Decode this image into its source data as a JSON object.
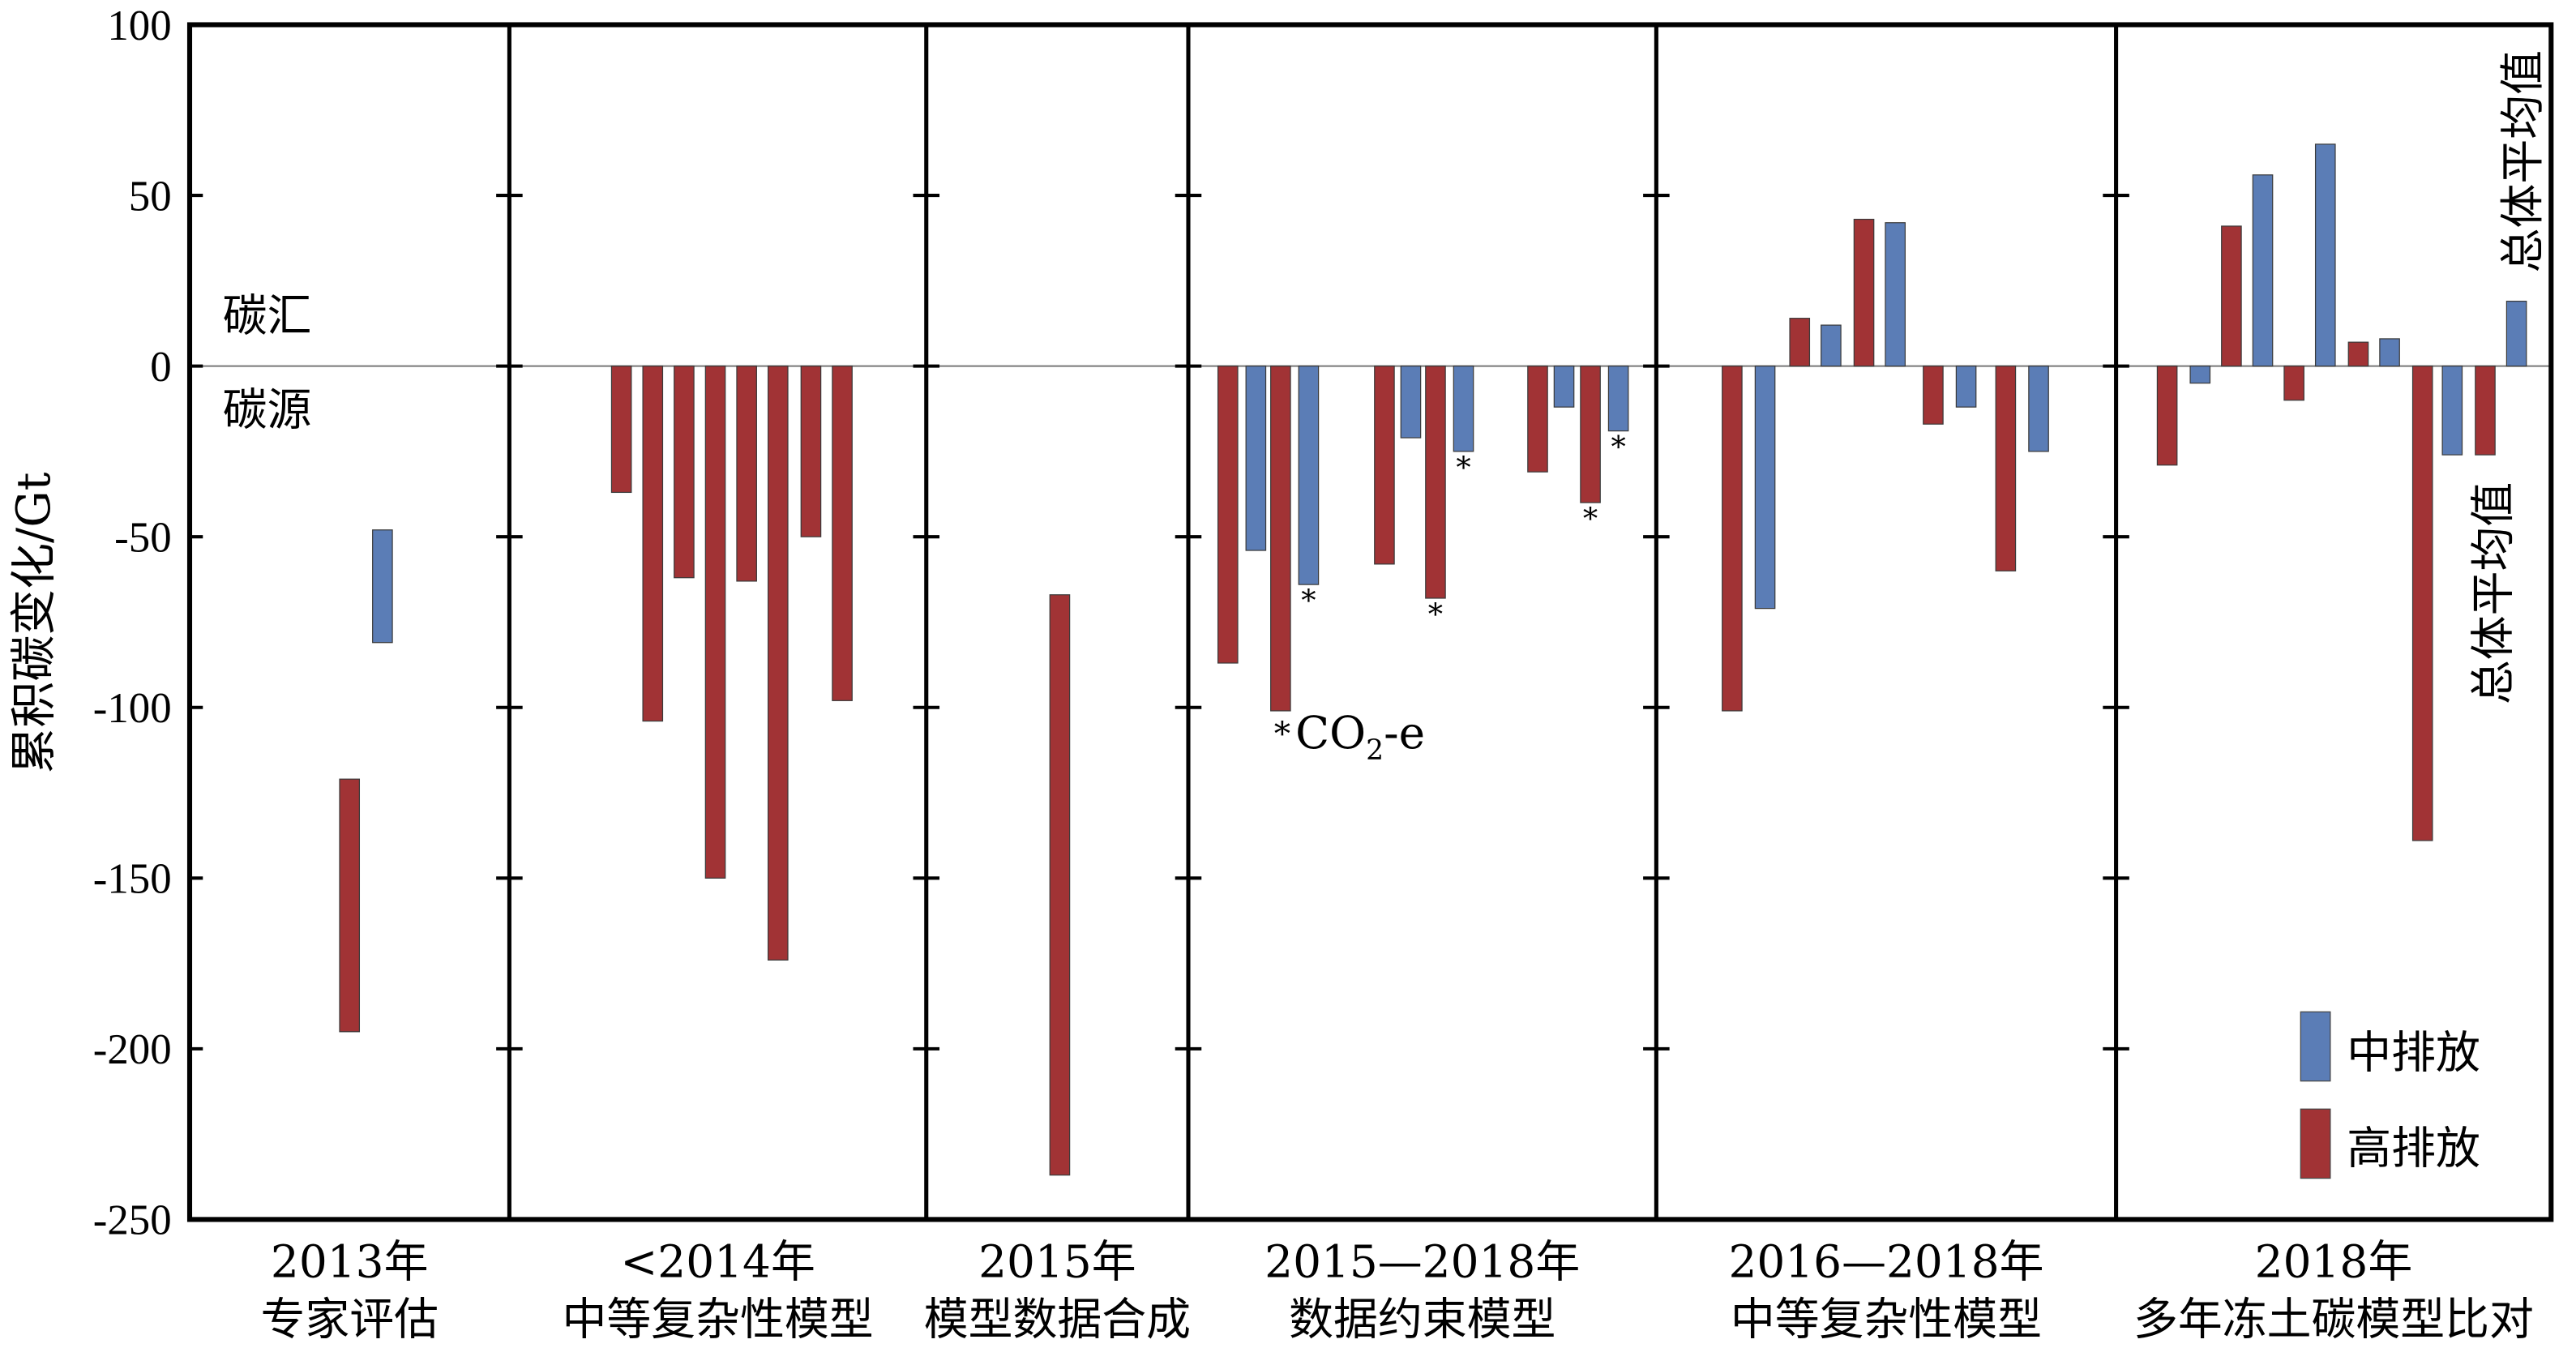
{
  "chart_data": {
    "type": "bar",
    "ylabel": "累积碳变化/Gt",
    "ylim": [
      -250,
      100
    ],
    "yticks": [
      100,
      50,
      0,
      -50,
      -100,
      -150,
      -200,
      -250
    ],
    "zero_labels": {
      "above": "碳汇",
      "below": "碳源"
    },
    "legend": {
      "position": "bottom-right",
      "entries": [
        {
          "name": "中排放",
          "color": "#5B7DB6"
        },
        {
          "name": "高排放",
          "color": "#A13335"
        }
      ]
    },
    "colors": {
      "medium": "#5B7DB6",
      "high": "#A13335"
    },
    "panels": [
      {
        "year": "2013年",
        "name": "专家评估",
        "bars": [
          {
            "s": "high",
            "range": [
              -121,
              -195
            ]
          },
          {
            "s": "medium",
            "range": [
              -48,
              -81
            ]
          }
        ]
      },
      {
        "year": "<2014年",
        "name": "中等复杂性模型",
        "bars": [
          {
            "s": "high",
            "v": -37
          },
          {
            "s": "high",
            "v": -104
          },
          {
            "s": "high",
            "v": -62
          },
          {
            "s": "high",
            "v": -150
          },
          {
            "s": "high",
            "v": -63
          },
          {
            "s": "high",
            "v": -174
          },
          {
            "s": "high",
            "v": -50
          },
          {
            "s": "high",
            "v": -98
          }
        ]
      },
      {
        "year": "2015年",
        "name": "模型数据合成",
        "bars": [
          {
            "s": "high",
            "range": [
              -67,
              -237
            ]
          }
        ]
      },
      {
        "year": "2015—2018年",
        "name": "数据约束模型",
        "bars": [
          {
            "s": "high",
            "v": -87
          },
          {
            "s": "medium",
            "v": -54
          },
          {
            "s": "high",
            "v": -101,
            "note": "*CO2-e"
          },
          {
            "s": "medium",
            "v": -64,
            "star": true
          },
          {
            "s": "high",
            "v": -58
          },
          {
            "s": "medium",
            "v": -21
          },
          {
            "s": "high",
            "v": -68,
            "star": true
          },
          {
            "s": "medium",
            "v": -25,
            "star": true
          },
          {
            "s": "high",
            "v": -31
          },
          {
            "s": "medium",
            "v": -12
          },
          {
            "s": "high",
            "v": -40,
            "star": true
          },
          {
            "s": "medium",
            "v": -19,
            "star": true
          }
        ]
      },
      {
        "year": "2016—2018年",
        "name": "中等复杂性模型",
        "bars": [
          {
            "s": "high",
            "v": -101
          },
          {
            "s": "medium",
            "v": -71
          },
          {
            "s": "high",
            "v": 14
          },
          {
            "s": "medium",
            "v": 12
          },
          {
            "s": "high",
            "v": 43
          },
          {
            "s": "medium",
            "v": 42
          },
          {
            "s": "high",
            "v": -17
          },
          {
            "s": "medium",
            "v": -12
          },
          {
            "s": "high",
            "v": -60
          },
          {
            "s": "medium",
            "v": -25
          }
        ]
      },
      {
        "year": "2018年",
        "name": "多年冻土碳模型比对",
        "bars": [
          {
            "s": "high",
            "v": -29
          },
          {
            "s": "medium",
            "v": -5
          },
          {
            "s": "high",
            "v": 41
          },
          {
            "s": "medium",
            "v": 56
          },
          {
            "s": "high",
            "v": -10
          },
          {
            "s": "medium",
            "v": 65
          },
          {
            "s": "high",
            "v": 7
          },
          {
            "s": "medium",
            "v": 8
          },
          {
            "s": "high",
            "v": -139
          },
          {
            "s": "medium",
            "v": -26
          },
          {
            "s": "high",
            "v": -26,
            "avg": true
          },
          {
            "s": "medium",
            "v": 19,
            "avg": true
          }
        ]
      }
    ],
    "annotations": {
      "star": "*",
      "co2": "CO",
      "co2_sub": "2",
      "co2_suffix": "-e",
      "avg_label": "总体平均值"
    }
  }
}
